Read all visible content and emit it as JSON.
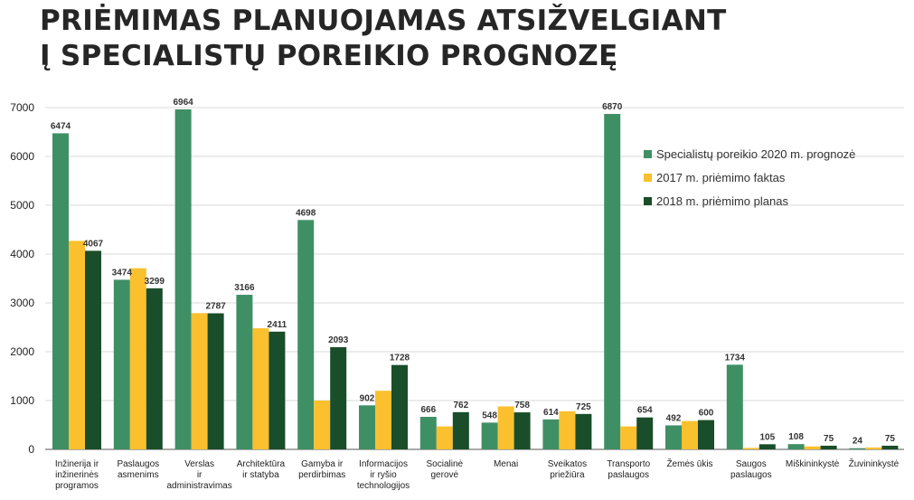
{
  "title_lines": [
    "PRIĖMIMAS PLANUOJAMAS ATSIŽVELGIANT",
    "Į SPECIALISTŲ POREIKIO PROGNOZĘ"
  ],
  "colors": {
    "s1": "#3f8f65",
    "s2": "#fbc02d",
    "s3": "#1a4d2a",
    "grid": "#d9d9d9",
    "text": "#222222",
    "axis": "#555555"
  },
  "chart_data": {
    "type": "bar",
    "title": "PRIĖMIMAS PLANUOJAMAS ATSIŽVELGIANT Į SPECIALISTŲ POREIKIO PROGNOZĘ",
    "ylim": [
      0,
      7000
    ],
    "yticks": [
      0,
      1000,
      2000,
      3000,
      4000,
      5000,
      6000,
      7000
    ],
    "grid": true,
    "legend_position": "right",
    "categories": [
      [
        "Inžinerija ir",
        "inžinerinės",
        "programos"
      ],
      [
        "Paslaugos",
        "asmenims"
      ],
      [
        "Verslas",
        "ir",
        "administravimas"
      ],
      [
        "Architektūra",
        "ir statyba"
      ],
      [
        "Gamyba ir",
        "perdirbimas"
      ],
      [
        "Informacijos",
        "ir ryšio",
        "technologijos"
      ],
      [
        "Socialinė",
        "gerovė"
      ],
      [
        "Menai"
      ],
      [
        "Sveikatos",
        "priežiūra"
      ],
      [
        "Transporto",
        "paslaugos"
      ],
      [
        "Žemės ūkis"
      ],
      [
        "Saugos",
        "paslaugos"
      ],
      [
        "Miškininkystė"
      ],
      [
        "Žuvininkystė"
      ]
    ],
    "series": [
      {
        "name": "Specialistų poreikio 2020 m. prognozė",
        "color": "#3f8f65",
        "values": [
          6474,
          3474,
          6964,
          3166,
          4698,
          902,
          666,
          548,
          614,
          6870,
          492,
          1734,
          108,
          24
        ]
      },
      {
        "name": "2017 m. priėmimo faktas",
        "color": "#fbc02d",
        "values": [
          4270,
          3710,
          2790,
          2480,
          1000,
          1200,
          470,
          880,
          780,
          470,
          580,
          30,
          60,
          40
        ]
      },
      {
        "name": "2018 m. priėmimo planas",
        "color": "#1a4d2a",
        "values": [
          4067,
          3299,
          2787,
          2411,
          2093,
          1728,
          762,
          758,
          725,
          654,
          600,
          105,
          75,
          75
        ]
      }
    ],
    "data_labels": [
      [
        "6474",
        "3474",
        "6964",
        "3166",
        "4698",
        "902",
        "666",
        "548",
        "614",
        "6870",
        "492",
        "1734",
        "108",
        "24"
      ],
      null,
      [
        "4067",
        "3299",
        "2787",
        "2411",
        "2093",
        "1728",
        "762",
        "758",
        "725",
        "654",
        "600",
        "105",
        "75",
        "75"
      ]
    ]
  }
}
